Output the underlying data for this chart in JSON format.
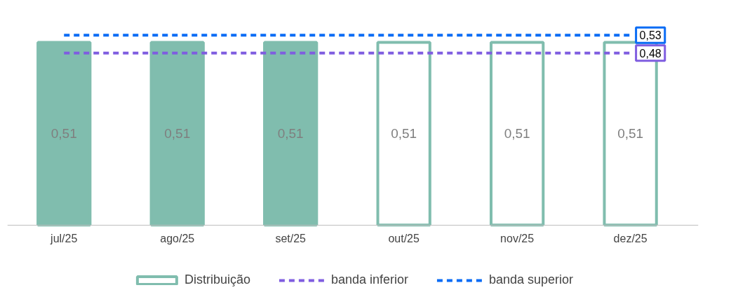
{
  "chart_data": {
    "type": "bar",
    "categories": [
      "jul/25",
      "ago/25",
      "set/25",
      "out/25",
      "nov/25",
      "dez/25"
    ],
    "tick_labels": "x",
    "grid": false,
    "legend": "bottom",
    "colors": [
      "#80bdae",
      "#80bdae",
      "#80bdae",
      "#ffffff",
      "#ffffff",
      "#ffffff"
    ],
    "series": [
      {
        "name": "Distribuição",
        "color": "#80bdae",
        "values": [
          0.51,
          0.51,
          0.51,
          0.51,
          0.51,
          0.51
        ],
        "value_labels": [
          "0,51",
          "0,51",
          "0,51",
          "0,51",
          "0,51",
          "0,51"
        ]
      },
      {
        "name": "banda inferior",
        "type": "line",
        "line_style": "dashed",
        "color": "#7f5de0",
        "values": [
          0.48,
          0.48,
          0.48,
          0.48,
          0.48,
          0.48
        ],
        "value_labels": [
          null,
          null,
          null,
          null,
          null,
          "0,48"
        ]
      },
      {
        "name": "banda superior",
        "type": "line",
        "line_style": "dashed",
        "color": "#0a6cf5",
        "values": [
          0.53,
          0.53,
          0.53,
          0.53,
          0.53,
          0.53
        ],
        "value_labels": [
          null,
          null,
          null,
          null,
          null,
          "0,53"
        ]
      }
    ]
  }
}
